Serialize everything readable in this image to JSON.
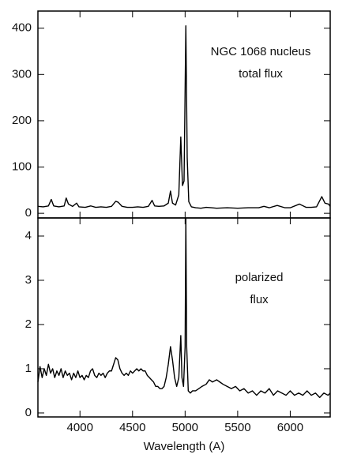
{
  "chart_data": [
    {
      "type": "line",
      "annotations": [
        "NGC 1068 nucleus",
        "total flux"
      ],
      "color": "#000000",
      "xlim": [
        3600,
        6380
      ],
      "ylim": [
        -10,
        437
      ],
      "yticks": [
        0,
        100,
        200,
        300,
        400
      ],
      "x": [
        3600,
        3650,
        3700,
        3727,
        3750,
        3800,
        3850,
        3869,
        3890,
        3930,
        3968,
        3990,
        4050,
        4102,
        4150,
        4200,
        4250,
        4300,
        4340,
        4363,
        4400,
        4450,
        4500,
        4550,
        4600,
        4650,
        4686,
        4710,
        4750,
        4800,
        4840,
        4861,
        4880,
        4910,
        4940,
        4959,
        4975,
        4990,
        5007,
        5020,
        5035,
        5060,
        5100,
        5150,
        5200,
        5250,
        5300,
        5400,
        5500,
        5600,
        5700,
        5750,
        5800,
        5876,
        5950,
        6000,
        6087,
        6150,
        6200,
        6250,
        6300,
        6330,
        6364,
        6380
      ],
      "values": [
        15,
        14,
        16,
        30,
        16,
        14,
        16,
        33,
        20,
        15,
        22,
        14,
        13,
        16,
        13,
        14,
        13,
        15,
        26,
        24,
        15,
        13,
        13,
        14,
        13,
        15,
        28,
        16,
        15,
        16,
        22,
        48,
        22,
        18,
        40,
        165,
        60,
        70,
        405,
        120,
        25,
        14,
        12,
        11,
        13,
        12,
        11,
        12,
        11,
        12,
        12,
        15,
        12,
        17,
        12,
        12,
        20,
        13,
        13,
        14,
        36,
        22,
        20,
        15
      ]
    },
    {
      "type": "line",
      "annotations": [
        "polarized",
        "flux"
      ],
      "x_label": "Wavelength (A)",
      "color": "#000000",
      "xlim": [
        3600,
        6380
      ],
      "ylim": [
        -0.09,
        4.41
      ],
      "xticks": [
        4000,
        4500,
        5000,
        5500,
        6000
      ],
      "yticks": [
        0,
        1,
        2,
        3,
        4
      ],
      "x": [
        3600,
        3620,
        3640,
        3660,
        3680,
        3700,
        3720,
        3740,
        3760,
        3780,
        3800,
        3820,
        3840,
        3860,
        3880,
        3900,
        3920,
        3940,
        3960,
        3980,
        4000,
        4020,
        4040,
        4060,
        4080,
        4100,
        4120,
        4140,
        4160,
        4180,
        4200,
        4220,
        4240,
        4260,
        4280,
        4300,
        4320,
        4340,
        4360,
        4380,
        4400,
        4420,
        4440,
        4460,
        4480,
        4500,
        4520,
        4540,
        4560,
        4580,
        4600,
        4620,
        4640,
        4660,
        4680,
        4700,
        4720,
        4740,
        4760,
        4780,
        4800,
        4820,
        4840,
        4861,
        4880,
        4900,
        4920,
        4940,
        4959,
        4970,
        4985,
        5000,
        5007,
        5015,
        5030,
        5050,
        5070,
        5100,
        5130,
        5160,
        5200,
        5230,
        5260,
        5300,
        5330,
        5360,
        5400,
        5440,
        5480,
        5520,
        5560,
        5600,
        5640,
        5680,
        5720,
        5760,
        5800,
        5840,
        5880,
        5920,
        5960,
        6000,
        6040,
        6080,
        6120,
        6160,
        6200,
        6240,
        6280,
        6320,
        6360,
        6380
      ],
      "values": [
        0.7,
        1.05,
        0.8,
        1.0,
        0.85,
        1.1,
        0.9,
        1.0,
        0.8,
        0.95,
        0.85,
        1.0,
        0.8,
        0.95,
        0.85,
        0.9,
        0.75,
        0.9,
        0.8,
        0.95,
        0.8,
        0.85,
        0.75,
        0.85,
        0.8,
        0.95,
        1.0,
        0.85,
        0.8,
        0.9,
        0.85,
        0.9,
        0.8,
        0.9,
        0.95,
        0.95,
        1.1,
        1.25,
        1.2,
        1.0,
        0.9,
        0.85,
        0.9,
        0.85,
        0.95,
        0.9,
        0.95,
        1.0,
        0.95,
        1.0,
        0.95,
        0.95,
        0.85,
        0.8,
        0.75,
        0.7,
        0.6,
        0.6,
        0.55,
        0.55,
        0.6,
        0.8,
        1.1,
        1.5,
        1.2,
        0.8,
        0.6,
        0.8,
        1.75,
        0.8,
        0.6,
        1.5,
        4.4,
        1.5,
        0.5,
        0.45,
        0.5,
        0.5,
        0.55,
        0.6,
        0.65,
        0.75,
        0.7,
        0.75,
        0.7,
        0.65,
        0.6,
        0.55,
        0.6,
        0.5,
        0.55,
        0.45,
        0.5,
        0.4,
        0.5,
        0.45,
        0.55,
        0.4,
        0.5,
        0.45,
        0.4,
        0.5,
        0.4,
        0.45,
        0.4,
        0.5,
        0.4,
        0.45,
        0.35,
        0.45,
        0.4,
        0.45
      ]
    }
  ]
}
